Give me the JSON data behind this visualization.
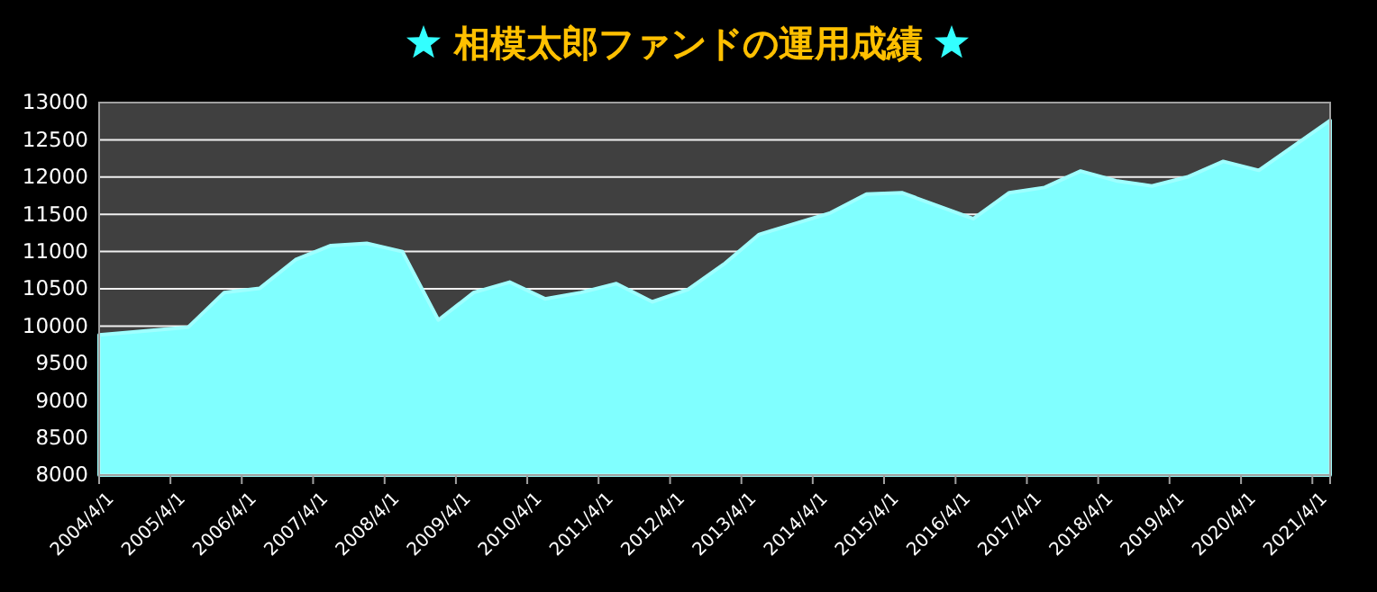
{
  "chart_data": {
    "type": "area",
    "title": "相模太郎ファンドの運用成績",
    "x": [
      "2004-04-01",
      "2005-07-01",
      "2006-01-01",
      "2006-07-01",
      "2007-01-01",
      "2007-07-01",
      "2008-01-01",
      "2008-07-01",
      "2009-01-01",
      "2009-07-01",
      "2010-01-01",
      "2010-07-01",
      "2011-01-01",
      "2011-07-01",
      "2012-01-01",
      "2012-07-01",
      "2013-01-01",
      "2013-07-01",
      "2014-07-01",
      "2015-01-01",
      "2015-07-01",
      "2016-07-01",
      "2017-01-01",
      "2017-07-01",
      "2018-01-01",
      "2018-07-01",
      "2019-01-01",
      "2019-07-01",
      "2020-01-01",
      "2020-07-01",
      "2021-07-01"
    ],
    "series": [
      {
        "color": "#80ffff",
        "values": [
          9880,
          9985,
          10450,
          10505,
          10890,
          11080,
          11110,
          11000,
          10080,
          10450,
          10590,
          10365,
          10450,
          10570,
          10325,
          10490,
          10830,
          11230,
          11520,
          11770,
          11790,
          11440,
          11790,
          11860,
          12080,
          11950,
          11880,
          12000,
          12210,
          12090,
          12760
        ]
      }
    ],
    "xlim": [
      "2004-04-01",
      "2021-07-01"
    ],
    "xticks": [
      {
        "value": "2004-04-01",
        "label": "2004/4/1"
      },
      {
        "value": "2005-04-01",
        "label": "2005/4/1"
      },
      {
        "value": "2006-04-01",
        "label": "2006/4/1"
      },
      {
        "value": "2007-04-01",
        "label": "2007/4/1"
      },
      {
        "value": "2008-04-01",
        "label": "2008/4/1"
      },
      {
        "value": "2009-04-01",
        "label": "2009/4/1"
      },
      {
        "value": "2010-04-01",
        "label": "2010/4/1"
      },
      {
        "value": "2011-04-01",
        "label": "2011/4/1"
      },
      {
        "value": "2012-04-01",
        "label": "2012/4/1"
      },
      {
        "value": "2013-04-01",
        "label": "2013/4/1"
      },
      {
        "value": "2014-04-01",
        "label": "2014/4/1"
      },
      {
        "value": "2015-04-01",
        "label": "2015/4/1"
      },
      {
        "value": "2016-04-01",
        "label": "2016/4/1"
      },
      {
        "value": "2017-04-01",
        "label": "2017/4/1"
      },
      {
        "value": "2018-04-01",
        "label": "2018/4/1"
      },
      {
        "value": "2019-04-01",
        "label": "2019/4/1"
      },
      {
        "value": "2020-04-01",
        "label": "2020/4/1"
      },
      {
        "value": "2021-04-01",
        "label": "2021/4/1"
      }
    ],
    "ylim": [
      8000,
      13000
    ],
    "yticks": [
      8000,
      8500,
      9000,
      9500,
      10000,
      10500,
      11000,
      11500,
      12000,
      12500,
      13000
    ],
    "grid": "y"
  }
}
